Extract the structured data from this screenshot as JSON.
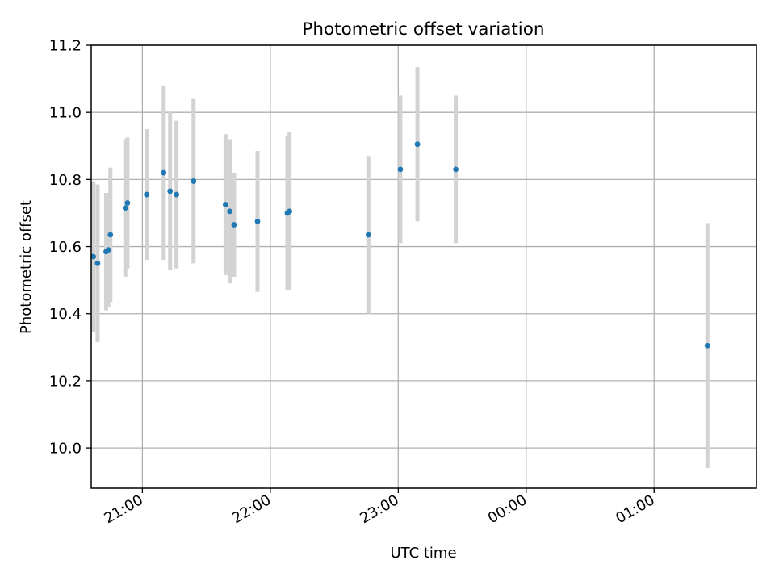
{
  "chart_data": {
    "type": "scatter",
    "title": "Photometric offset variation",
    "xlabel": "UTC time",
    "ylabel": "Photometric offset",
    "x_axis_kind": "time",
    "xlim": [
      "20:36",
      "01:48"
    ],
    "ylim": [
      9.88,
      11.2
    ],
    "grid": true,
    "x_ticks": [
      {
        "time": "21:00",
        "label": "21:00"
      },
      {
        "time": "22:00",
        "label": "22:00"
      },
      {
        "time": "23:00",
        "label": "23:00"
      },
      {
        "time": "00:00",
        "label": "00:00"
      },
      {
        "time": "01:00",
        "label": "01:00"
      }
    ],
    "y_ticks": [
      {
        "value": 10.0,
        "label": "10.0"
      },
      {
        "value": 10.2,
        "label": "10.2"
      },
      {
        "value": 10.4,
        "label": "10.4"
      },
      {
        "value": 10.6,
        "label": "10.6"
      },
      {
        "value": 10.8,
        "label": "10.8"
      },
      {
        "value": 11.0,
        "label": "11.0"
      },
      {
        "value": 11.2,
        "label": "11.2"
      }
    ],
    "colors": {
      "marker": "#1f77b4",
      "errorbar": "#d3d3d3",
      "grid": "#b0b0b0",
      "axes": "#000000"
    },
    "points": [
      {
        "time": "20:37",
        "y": 10.57,
        "err": 0.225
      },
      {
        "time": "20:39",
        "y": 10.55,
        "err": 0.235
      },
      {
        "time": "20:43",
        "y": 10.585,
        "err": 0.175
      },
      {
        "time": "20:44",
        "y": 10.59,
        "err": 0.17
      },
      {
        "time": "20:45",
        "y": 10.635,
        "err": 0.2
      },
      {
        "time": "20:52",
        "y": 10.715,
        "err": 0.205
      },
      {
        "time": "20:53",
        "y": 10.73,
        "err": 0.195
      },
      {
        "time": "21:02",
        "y": 10.755,
        "err": 0.195
      },
      {
        "time": "21:10",
        "y": 10.82,
        "err": 0.26
      },
      {
        "time": "21:13",
        "y": 10.765,
        "err": 0.235
      },
      {
        "time": "21:16",
        "y": 10.755,
        "err": 0.22
      },
      {
        "time": "21:24",
        "y": 10.795,
        "err": 0.245
      },
      {
        "time": "21:39",
        "y": 10.725,
        "err": 0.21
      },
      {
        "time": "21:41",
        "y": 10.705,
        "err": 0.215
      },
      {
        "time": "21:43",
        "y": 10.665,
        "err": 0.155
      },
      {
        "time": "21:54",
        "y": 10.675,
        "err": 0.21
      },
      {
        "time": "22:08",
        "y": 10.7,
        "err": 0.23
      },
      {
        "time": "22:09",
        "y": 10.705,
        "err": 0.235
      },
      {
        "time": "22:46",
        "y": 10.635,
        "err": 0.235
      },
      {
        "time": "23:01",
        "y": 10.83,
        "err": 0.22
      },
      {
        "time": "23:09",
        "y": 10.905,
        "err": 0.23
      },
      {
        "time": "23:27",
        "y": 10.83,
        "err": 0.22
      },
      {
        "time": "01:25",
        "y": 10.305,
        "err": 0.365
      }
    ]
  }
}
